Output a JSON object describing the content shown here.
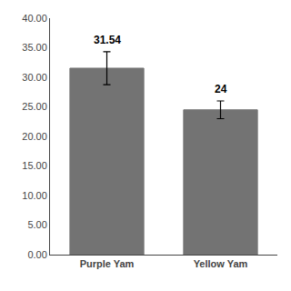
{
  "chart_data": {
    "type": "bar",
    "categories": [
      "Purple Yam",
      "Yellow Yam"
    ],
    "values": [
      31.54,
      24.5
    ],
    "errors": [
      2.8,
      1.5
    ],
    "value_labels": [
      "31.54",
      "24"
    ],
    "data_labels": true,
    "color": "#737373",
    "ylim": [
      0,
      40
    ],
    "yticks": [
      {
        "value": 0,
        "label": "0.00"
      },
      {
        "value": 5,
        "label": "5.00"
      },
      {
        "value": 10,
        "label": "10.00"
      },
      {
        "value": 15,
        "label": "15.00"
      },
      {
        "value": 20,
        "label": "20.00"
      },
      {
        "value": 25,
        "label": "25.00"
      },
      {
        "value": 30,
        "label": "30.00"
      },
      {
        "value": 35,
        "label": "35.00"
      },
      {
        "value": 40,
        "label": "40.00"
      }
    ],
    "grid": false
  }
}
